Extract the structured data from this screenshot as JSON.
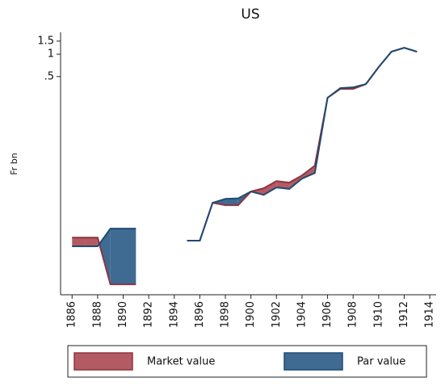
{
  "chart_data": {
    "type": "range_area",
    "title": "US",
    "y_label": "Fr bn",
    "y_scale": "log",
    "x": [
      1886,
      1887,
      1888,
      1889,
      1890,
      1891,
      1892,
      1893,
      1894,
      1895,
      1896,
      1897,
      1898,
      1899,
      1900,
      1901,
      1902,
      1903,
      1904,
      1905,
      1906,
      1907,
      1908,
      1909,
      1910,
      1911,
      1912,
      1913
    ],
    "series": [
      {
        "name": "Market value",
        "color": "#b45a63",
        "line_color": "#8e3540",
        "values": [
          0.0034,
          0.0034,
          0.0034,
          0.0008,
          0.0008,
          0.0008,
          null,
          null,
          null,
          0.0031,
          0.0031,
          0.01,
          0.0093,
          0.0093,
          0.0142,
          0.0157,
          0.0196,
          0.0187,
          0.0234,
          0.0316,
          0.259,
          0.341,
          0.341,
          0.396,
          0.67,
          1.08,
          1.22,
          1.08
        ]
      },
      {
        "name": "Par value",
        "color": "#3f6a92",
        "line_color": "#1f4a72",
        "values": [
          0.0026,
          0.0026,
          0.0026,
          0.0045,
          0.0045,
          0.0045,
          null,
          null,
          null,
          0.0031,
          0.0031,
          0.01,
          0.0113,
          0.0115,
          0.0142,
          0.0128,
          0.0161,
          0.0154,
          0.0212,
          0.0252,
          0.259,
          0.35,
          0.358,
          0.396,
          0.67,
          1.08,
          1.22,
          1.08
        ]
      }
    ],
    "xlim": [
      1885.1,
      1914.5
    ],
    "xticks": [
      1886,
      1888,
      1890,
      1892,
      1894,
      1896,
      1898,
      1900,
      1902,
      1904,
      1906,
      1908,
      1910,
      1912,
      1914
    ],
    "ylim": [
      0.00058,
      1.97
    ],
    "yticks": [
      {
        "value": 0.5,
        "label": ".5"
      },
      1,
      1.5
    ]
  }
}
